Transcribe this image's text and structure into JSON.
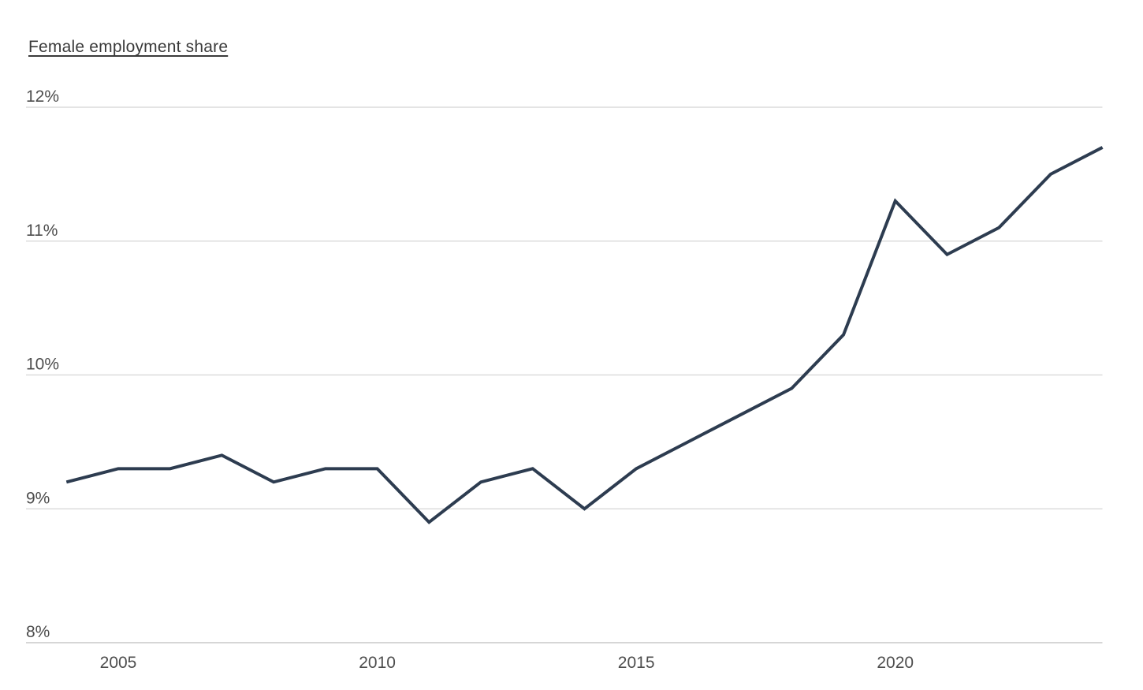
{
  "title": {
    "text": "Female employment share"
  },
  "chart_data": {
    "type": "line",
    "title": "Female employment share",
    "x": [
      2004,
      2005,
      2006,
      2007,
      2008,
      2009,
      2010,
      2011,
      2012,
      2013,
      2014,
      2015,
      2016,
      2017,
      2018,
      2019,
      2020,
      2021,
      2022,
      2023,
      2024
    ],
    "series": [
      {
        "name": "Female employment share",
        "values": [
          9.2,
          9.3,
          9.3,
          9.4,
          9.2,
          9.3,
          9.3,
          8.9,
          9.2,
          9.3,
          9.0,
          9.3,
          9.5,
          9.7,
          9.9,
          10.3,
          11.3,
          10.9,
          11.1,
          11.5,
          11.7
        ]
      }
    ],
    "xlabel": "",
    "ylabel": "",
    "ylim": [
      8,
      12
    ],
    "xlim": [
      2004,
      2024
    ],
    "y_ticks": [
      {
        "value": 12,
        "label": "12%"
      },
      {
        "value": 11,
        "label": "11%"
      },
      {
        "value": 10,
        "label": "10%"
      },
      {
        "value": 9,
        "label": "9%"
      },
      {
        "value": 8,
        "label": "8%"
      }
    ],
    "x_ticks": [
      {
        "value": 2005,
        "label": "2005"
      },
      {
        "value": 2010,
        "label": "2010"
      },
      {
        "value": 2015,
        "label": "2015"
      },
      {
        "value": 2020,
        "label": "2020"
      }
    ],
    "grid": "horizontal",
    "legend": "none",
    "colors": {
      "line": "#2d3c50",
      "grid": "#dcdcdc",
      "axis_line": "#c9c9c9",
      "tick_label": "#4d4d4d",
      "title": "#3a3a3a",
      "background": "#ffffff"
    }
  }
}
